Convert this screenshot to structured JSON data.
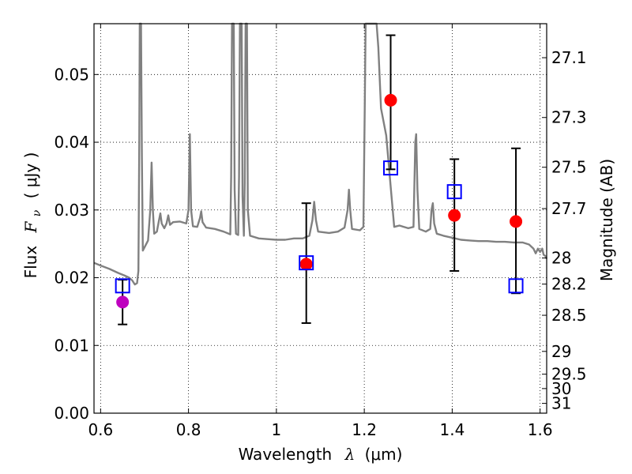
{
  "chart_data": {
    "type": "scatter",
    "title": "",
    "xlabel": "Wavelength  λ (μm)",
    "ylabel": "Flux  Fν  ( μJy )",
    "ylabel_parts": {
      "prefix": "Flux",
      "symbol": "F",
      "subscript": "ν",
      "unit": "( μJy )"
    },
    "xlabel_parts": {
      "prefix": "Wavelength",
      "symbol": "λ",
      "unit": "(μm)"
    },
    "y2label": "Magnitude (AB)",
    "xlim": [
      0.585,
      1.615
    ],
    "ylim": [
      0.0,
      0.0575
    ],
    "grid": true,
    "x_ticks": [
      {
        "value": 0.6,
        "label": "0.6"
      },
      {
        "value": 0.8,
        "label": "0.8"
      },
      {
        "value": 1.0,
        "label": "1"
      },
      {
        "value": 1.2,
        "label": "1.2"
      },
      {
        "value": 1.4,
        "label": "1.4"
      },
      {
        "value": 1.6,
        "label": "1.6"
      }
    ],
    "y_ticks": [
      {
        "value": 0.0,
        "label": "0.00"
      },
      {
        "value": 0.01,
        "label": "0.01"
      },
      {
        "value": 0.02,
        "label": "0.02"
      },
      {
        "value": 0.03,
        "label": "0.03"
      },
      {
        "value": 0.04,
        "label": "0.04"
      },
      {
        "value": 0.05,
        "label": "0.05"
      }
    ],
    "y2_ticks": [
      {
        "mag": 27.1,
        "label": "27.1"
      },
      {
        "mag": 27.3,
        "label": "27.3"
      },
      {
        "mag": 27.5,
        "label": "27.5"
      },
      {
        "mag": 27.7,
        "label": "27.7"
      },
      {
        "mag": 28.0,
        "label": "28"
      },
      {
        "mag": 28.2,
        "label": "28.2"
      },
      {
        "mag": 28.5,
        "label": "28.5"
      },
      {
        "mag": 29.0,
        "label": "29"
      },
      {
        "mag": 29.5,
        "label": "29.5"
      },
      {
        "mag": 30.0,
        "label": "30"
      },
      {
        "mag": 31.0,
        "label": "31"
      }
    ],
    "series": [
      {
        "name": "model spectrum",
        "kind": "line",
        "color": "#808080",
        "points": [
          [
            0.585,
            0.0222
          ],
          [
            0.6,
            0.0218
          ],
          [
            0.62,
            0.0213
          ],
          [
            0.64,
            0.0207
          ],
          [
            0.655,
            0.0203
          ],
          [
            0.665,
            0.02
          ],
          [
            0.672,
            0.0196
          ],
          [
            0.678,
            0.019
          ],
          [
            0.683,
            0.0192
          ],
          [
            0.686,
            0.021
          ],
          [
            0.688,
            0.04
          ],
          [
            0.689,
            0.0575
          ],
          [
            0.692,
            0.0575
          ],
          [
            0.694,
            0.038
          ],
          [
            0.696,
            0.024
          ],
          [
            0.7,
            0.0245
          ],
          [
            0.708,
            0.0255
          ],
          [
            0.713,
            0.03
          ],
          [
            0.716,
            0.037
          ],
          [
            0.719,
            0.03
          ],
          [
            0.722,
            0.0265
          ],
          [
            0.728,
            0.0268
          ],
          [
            0.733,
            0.0285
          ],
          [
            0.736,
            0.0295
          ],
          [
            0.739,
            0.028
          ],
          [
            0.745,
            0.0273
          ],
          [
            0.75,
            0.028
          ],
          [
            0.754,
            0.0292
          ],
          [
            0.758,
            0.0278
          ],
          [
            0.765,
            0.0282
          ],
          [
            0.78,
            0.0283
          ],
          [
            0.795,
            0.028
          ],
          [
            0.8,
            0.03
          ],
          [
            0.803,
            0.0412
          ],
          [
            0.806,
            0.03
          ],
          [
            0.81,
            0.0276
          ],
          [
            0.82,
            0.0275
          ],
          [
            0.826,
            0.0288
          ],
          [
            0.829,
            0.0298
          ],
          [
            0.832,
            0.0282
          ],
          [
            0.84,
            0.0274
          ],
          [
            0.86,
            0.0272
          ],
          [
            0.88,
            0.0268
          ],
          [
            0.895,
            0.0264
          ],
          [
            0.897,
            0.035
          ],
          [
            0.899,
            0.0575
          ],
          [
            0.903,
            0.0575
          ],
          [
            0.905,
            0.033
          ],
          [
            0.908,
            0.0265
          ],
          [
            0.913,
            0.0263
          ],
          [
            0.915,
            0.035
          ],
          [
            0.917,
            0.0575
          ],
          [
            0.921,
            0.0575
          ],
          [
            0.923,
            0.032
          ],
          [
            0.926,
            0.0262
          ],
          [
            0.928,
            0.034
          ],
          [
            0.93,
            0.0575
          ],
          [
            0.933,
            0.0575
          ],
          [
            0.935,
            0.03
          ],
          [
            0.94,
            0.0262
          ],
          [
            0.96,
            0.0258
          ],
          [
            0.98,
            0.0257
          ],
          [
            1.0,
            0.0256
          ],
          [
            1.02,
            0.0256
          ],
          [
            1.04,
            0.0258
          ],
          [
            1.06,
            0.0258
          ],
          [
            1.075,
            0.0262
          ],
          [
            1.082,
            0.0285
          ],
          [
            1.086,
            0.0312
          ],
          [
            1.09,
            0.0285
          ],
          [
            1.095,
            0.0268
          ],
          [
            1.12,
            0.0266
          ],
          [
            1.14,
            0.0268
          ],
          [
            1.155,
            0.0274
          ],
          [
            1.162,
            0.03
          ],
          [
            1.165,
            0.033
          ],
          [
            1.168,
            0.03
          ],
          [
            1.172,
            0.0272
          ],
          [
            1.19,
            0.027
          ],
          [
            1.198,
            0.0275
          ],
          [
            1.201,
            0.045
          ],
          [
            1.203,
            0.0575
          ],
          [
            1.228,
            0.0575
          ],
          [
            1.232,
            0.054
          ],
          [
            1.238,
            0.045
          ],
          [
            1.25,
            0.041
          ],
          [
            1.262,
            0.032
          ],
          [
            1.268,
            0.0275
          ],
          [
            1.28,
            0.0277
          ],
          [
            1.3,
            0.0273
          ],
          [
            1.312,
            0.0275
          ],
          [
            1.316,
            0.04
          ],
          [
            1.318,
            0.0412
          ],
          [
            1.321,
            0.033
          ],
          [
            1.325,
            0.0272
          ],
          [
            1.34,
            0.0268
          ],
          [
            1.35,
            0.0272
          ],
          [
            1.353,
            0.03
          ],
          [
            1.356,
            0.031
          ],
          [
            1.359,
            0.028
          ],
          [
            1.365,
            0.0265
          ],
          [
            1.38,
            0.0262
          ],
          [
            1.4,
            0.0259
          ],
          [
            1.42,
            0.0256
          ],
          [
            1.44,
            0.0255
          ],
          [
            1.46,
            0.0254
          ],
          [
            1.48,
            0.0254
          ],
          [
            1.5,
            0.0253
          ],
          [
            1.52,
            0.0253
          ],
          [
            1.54,
            0.0252
          ],
          [
            1.56,
            0.0252
          ],
          [
            1.575,
            0.0249
          ],
          [
            1.585,
            0.0243
          ],
          [
            1.59,
            0.0236
          ],
          [
            1.595,
            0.0243
          ],
          [
            1.6,
            0.0238
          ],
          [
            1.605,
            0.0243
          ],
          [
            1.608,
            0.0234
          ],
          [
            1.612,
            0.0232
          ],
          [
            1.615,
            0.0228
          ]
        ]
      },
      {
        "name": "observed (red)",
        "kind": "marker",
        "marker": "circle",
        "color": "#ff0000",
        "points": [
          {
            "x": 1.068,
            "y": 0.022,
            "err_low": 0.0133,
            "err_high": 0.031
          },
          {
            "x": 1.26,
            "y": 0.0462,
            "err_low": 0.036,
            "err_high": 0.0558
          },
          {
            "x": 1.405,
            "y": 0.0292,
            "err_low": 0.021,
            "err_high": 0.0375
          },
          {
            "x": 1.545,
            "y": 0.0283,
            "err_low": 0.0177,
            "err_high": 0.0391
          }
        ]
      },
      {
        "name": "observed (magenta)",
        "kind": "marker",
        "marker": "circle",
        "color": "#bf00bf",
        "points": [
          {
            "x": 0.65,
            "y": 0.0164,
            "err_low": 0.0131,
            "err_high": 0.0197
          }
        ]
      },
      {
        "name": "model photometry",
        "kind": "marker",
        "marker": "open-square",
        "color": "#0000ff",
        "points": [
          {
            "x": 0.65,
            "y": 0.0188
          },
          {
            "x": 1.068,
            "y": 0.0222
          },
          {
            "x": 1.26,
            "y": 0.0362
          },
          {
            "x": 1.405,
            "y": 0.0327
          },
          {
            "x": 1.545,
            "y": 0.0188
          }
        ]
      }
    ]
  }
}
